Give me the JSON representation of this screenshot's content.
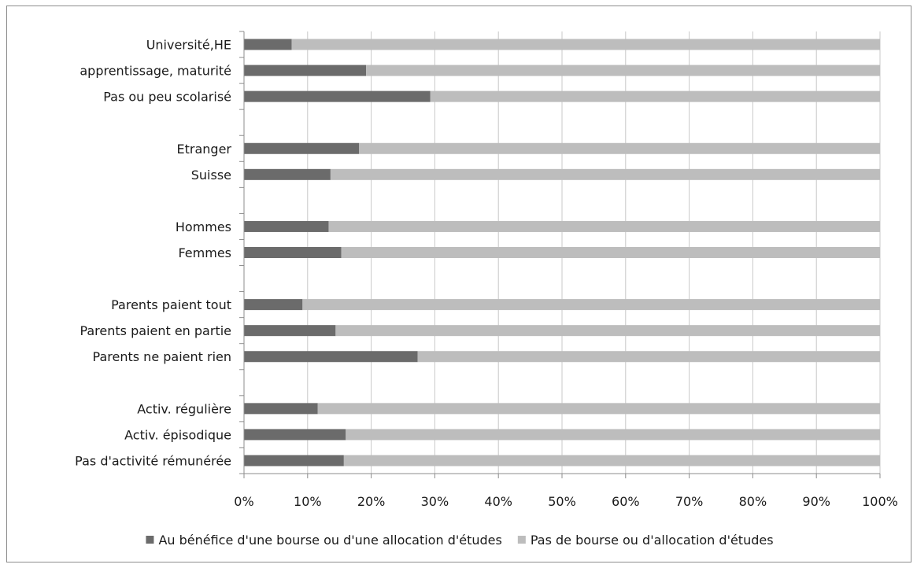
{
  "chart_data": {
    "type": "bar",
    "orientation": "horizontal",
    "stacked": "100%",
    "categories": [
      "Université,HE",
      "apprentissage, maturité",
      "Pas ou peu scolarisé",
      "",
      "Etranger",
      "Suisse",
      "",
      "Hommes",
      "Femmes",
      "",
      "Parents paient tout",
      "Parents paient en partie",
      "Parents ne paient rien",
      "",
      "Activ. régulière",
      "Activ. épisodique",
      "Pas d'activité rémunérée"
    ],
    "series": [
      {
        "name": "Au bénéfice d'une bourse ou d'une allocation d'études",
        "color": "#6b6b6b",
        "values": [
          7.5,
          19.2,
          29.3,
          null,
          18.1,
          13.6,
          null,
          13.3,
          15.3,
          null,
          9.2,
          14.4,
          27.3,
          null,
          11.6,
          16.0,
          15.7
        ]
      },
      {
        "name": "Pas de bourse ou d'allocation d'études",
        "color": "#bdbdbd",
        "values": [
          92.5,
          80.8,
          70.7,
          null,
          81.9,
          86.4,
          null,
          86.7,
          84.7,
          null,
          90.8,
          85.6,
          72.7,
          null,
          88.4,
          84.0,
          84.3
        ]
      }
    ],
    "xlim": [
      0,
      100
    ],
    "x_ticks": [
      "0%",
      "10%",
      "20%",
      "30%",
      "40%",
      "50%",
      "60%",
      "70%",
      "80%",
      "90%",
      "100%"
    ],
    "grid": true,
    "legend_position": "bottom",
    "title": "",
    "xlabel": "",
    "ylabel": ""
  }
}
